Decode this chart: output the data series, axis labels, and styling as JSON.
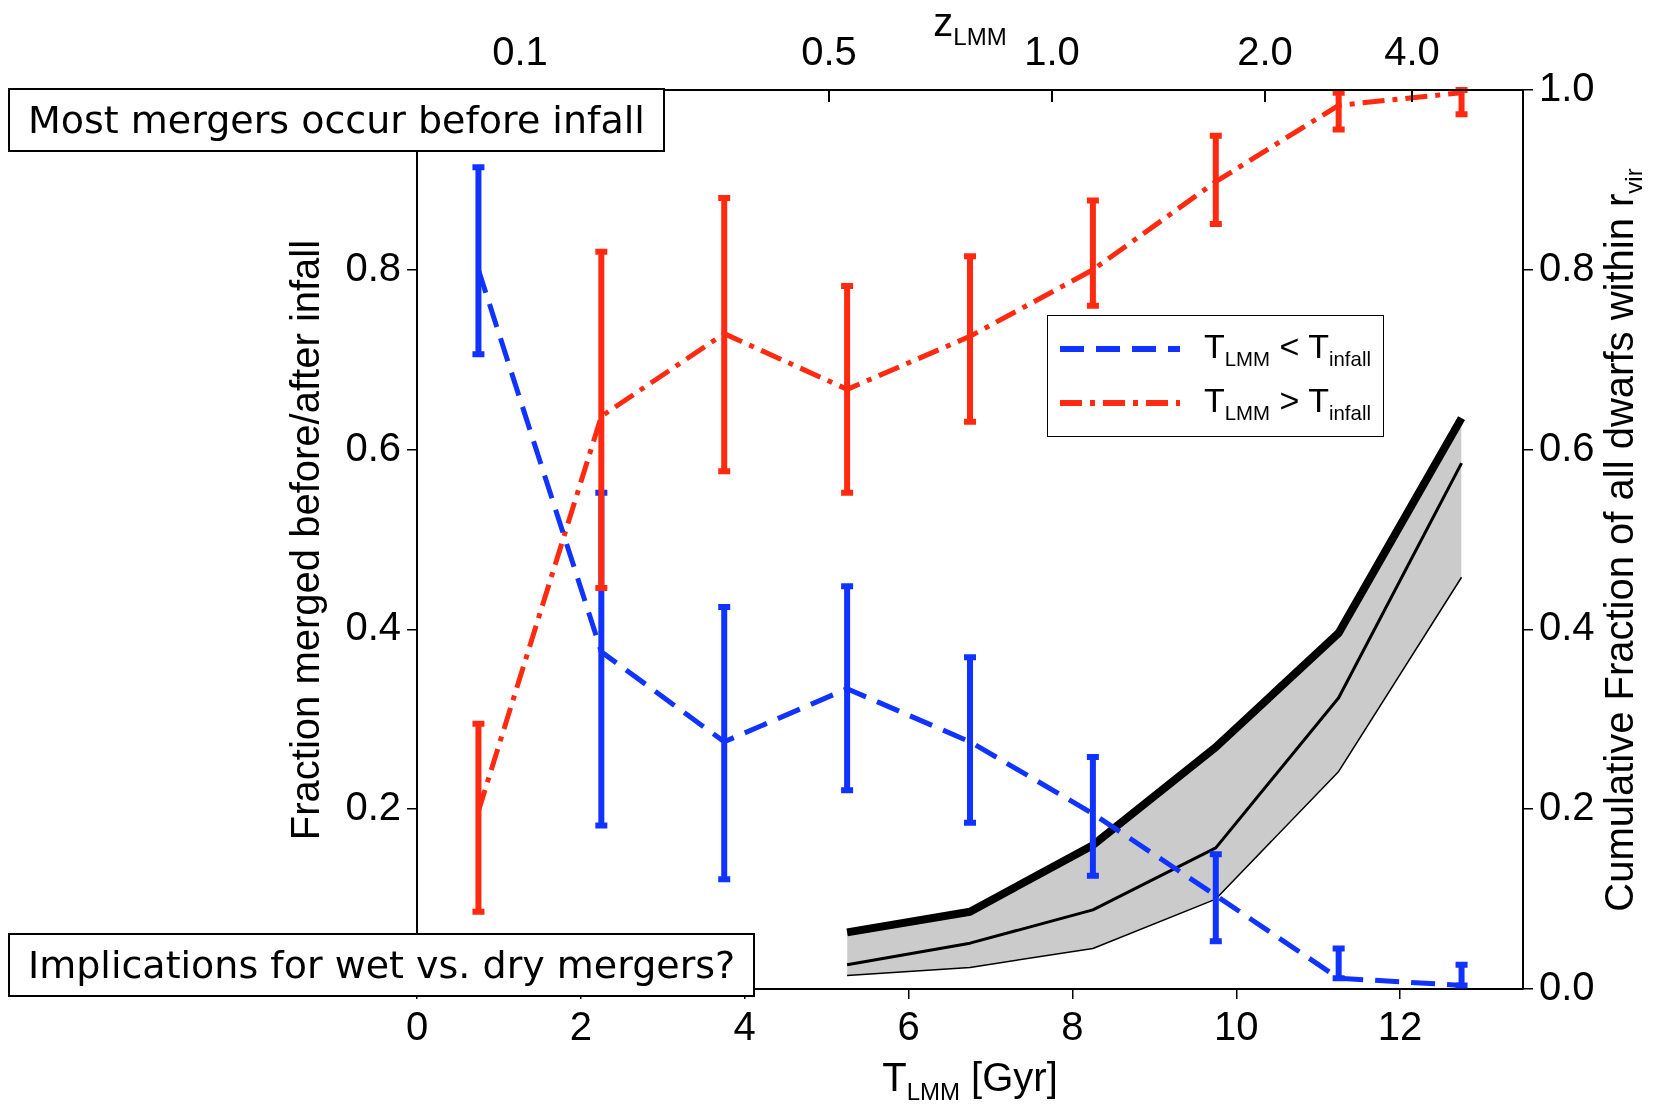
{
  "chart_data": {
    "type": "line",
    "xlabel": "T$_{LMM}$ [Gyr]",
    "ylabel": "Fraction merged before/after infall",
    "y2label": "Cumulative Fraction of all dwarfs within r$_{vir}$",
    "x2label": "z$_{LMM}$",
    "xlim": [
      0,
      13.5
    ],
    "xticks": [
      0,
      2,
      4,
      6,
      8,
      10,
      12
    ],
    "ylim": [
      0,
      1
    ],
    "yticks": [
      0.2,
      0.4,
      0.6,
      0.8
    ],
    "y2lim": [
      0,
      1
    ],
    "y2ticks": [
      {
        "value": 0,
        "label": "0.0"
      },
      0.2,
      0.4,
      0.6,
      0.8,
      {
        "value": 1,
        "label": "1.0"
      }
    ],
    "x": [
      0.75,
      2.25,
      3.75,
      5.25,
      6.75,
      8.25,
      9.75,
      11.25,
      12.75
    ],
    "legend": "right",
    "marker": "none",
    "series": [
      {
        "name": "T$_{LMM}$ < T$_{infall}$",
        "color": "#1133ff",
        "line_style": "dashed",
        "values": [
          0.8,
          0.375,
          0.275,
          0.334,
          0.275,
          0.195,
          0.104,
          0.012,
          0.004
        ],
        "errors": [
          [
            0.706,
            0.914
          ],
          [
            0.182,
            0.552
          ],
          [
            0.122,
            0.425
          ],
          [
            0.221,
            0.448
          ],
          [
            0.185,
            0.369
          ],
          [
            0.126,
            0.258
          ],
          [
            0.053,
            0.15
          ],
          [
            0.012,
            0.045
          ],
          [
            0.004,
            0.027
          ]
        ]
      },
      {
        "name": "T$_{LMM}$ > T$_{infall}$",
        "color": "#ff2a10",
        "line_style": "dashdot",
        "values": [
          0.198,
          0.637,
          0.729,
          0.667,
          0.726,
          0.8,
          0.898,
          0.983,
          0.997
        ],
        "errors": [
          [
            0.086,
            0.295
          ],
          [
            0.446,
            0.82
          ],
          [
            0.576,
            0.88
          ],
          [
            0.552,
            0.782
          ],
          [
            0.631,
            0.815
          ],
          [
            0.76,
            0.877
          ],
          [
            0.851,
            0.949
          ],
          [
            0.956,
            0.997
          ],
          [
            0.973,
            1.0
          ]
        ]
      },
      {
        "color": "#000000",
        "axis": "y2",
        "line_style": "solid",
        "x": [
          5.25,
          6.75,
          8.25,
          9.75,
          11.25,
          12.75
        ],
        "values": [
          0.063,
          0.086,
          0.16,
          0.269,
          0.396,
          0.635
        ]
      },
      {
        "color": "#000000",
        "axis": "y2",
        "line_style": "solid",
        "x": [
          5.25,
          6.75,
          8.25,
          9.75,
          11.25,
          12.75
        ],
        "values": [
          0.027,
          0.051,
          0.088,
          0.157,
          0.324,
          0.585
        ],
        "lower": [
          0.015,
          0.024,
          0.045,
          0.1,
          0.242,
          0.458
        ],
        "upper": [
          0.063,
          0.086,
          0.16,
          0.269,
          0.396,
          0.635
        ]
      },
      {
        "color": "#000000",
        "axis": "y2",
        "line_style": "solid",
        "x": [
          5.25,
          6.75,
          8.25,
          9.75,
          11.25,
          12.75
        ],
        "values": [
          0.015,
          0.024,
          0.045,
          0.1,
          0.242,
          0.458
        ]
      }
    ],
    "annotations": [
      "Most mergers occur before infall",
      "Implications for wet vs. dry mergers?",
      "0.1",
      "0.5",
      "1.0",
      "2.0",
      "4.0"
    ]
  }
}
